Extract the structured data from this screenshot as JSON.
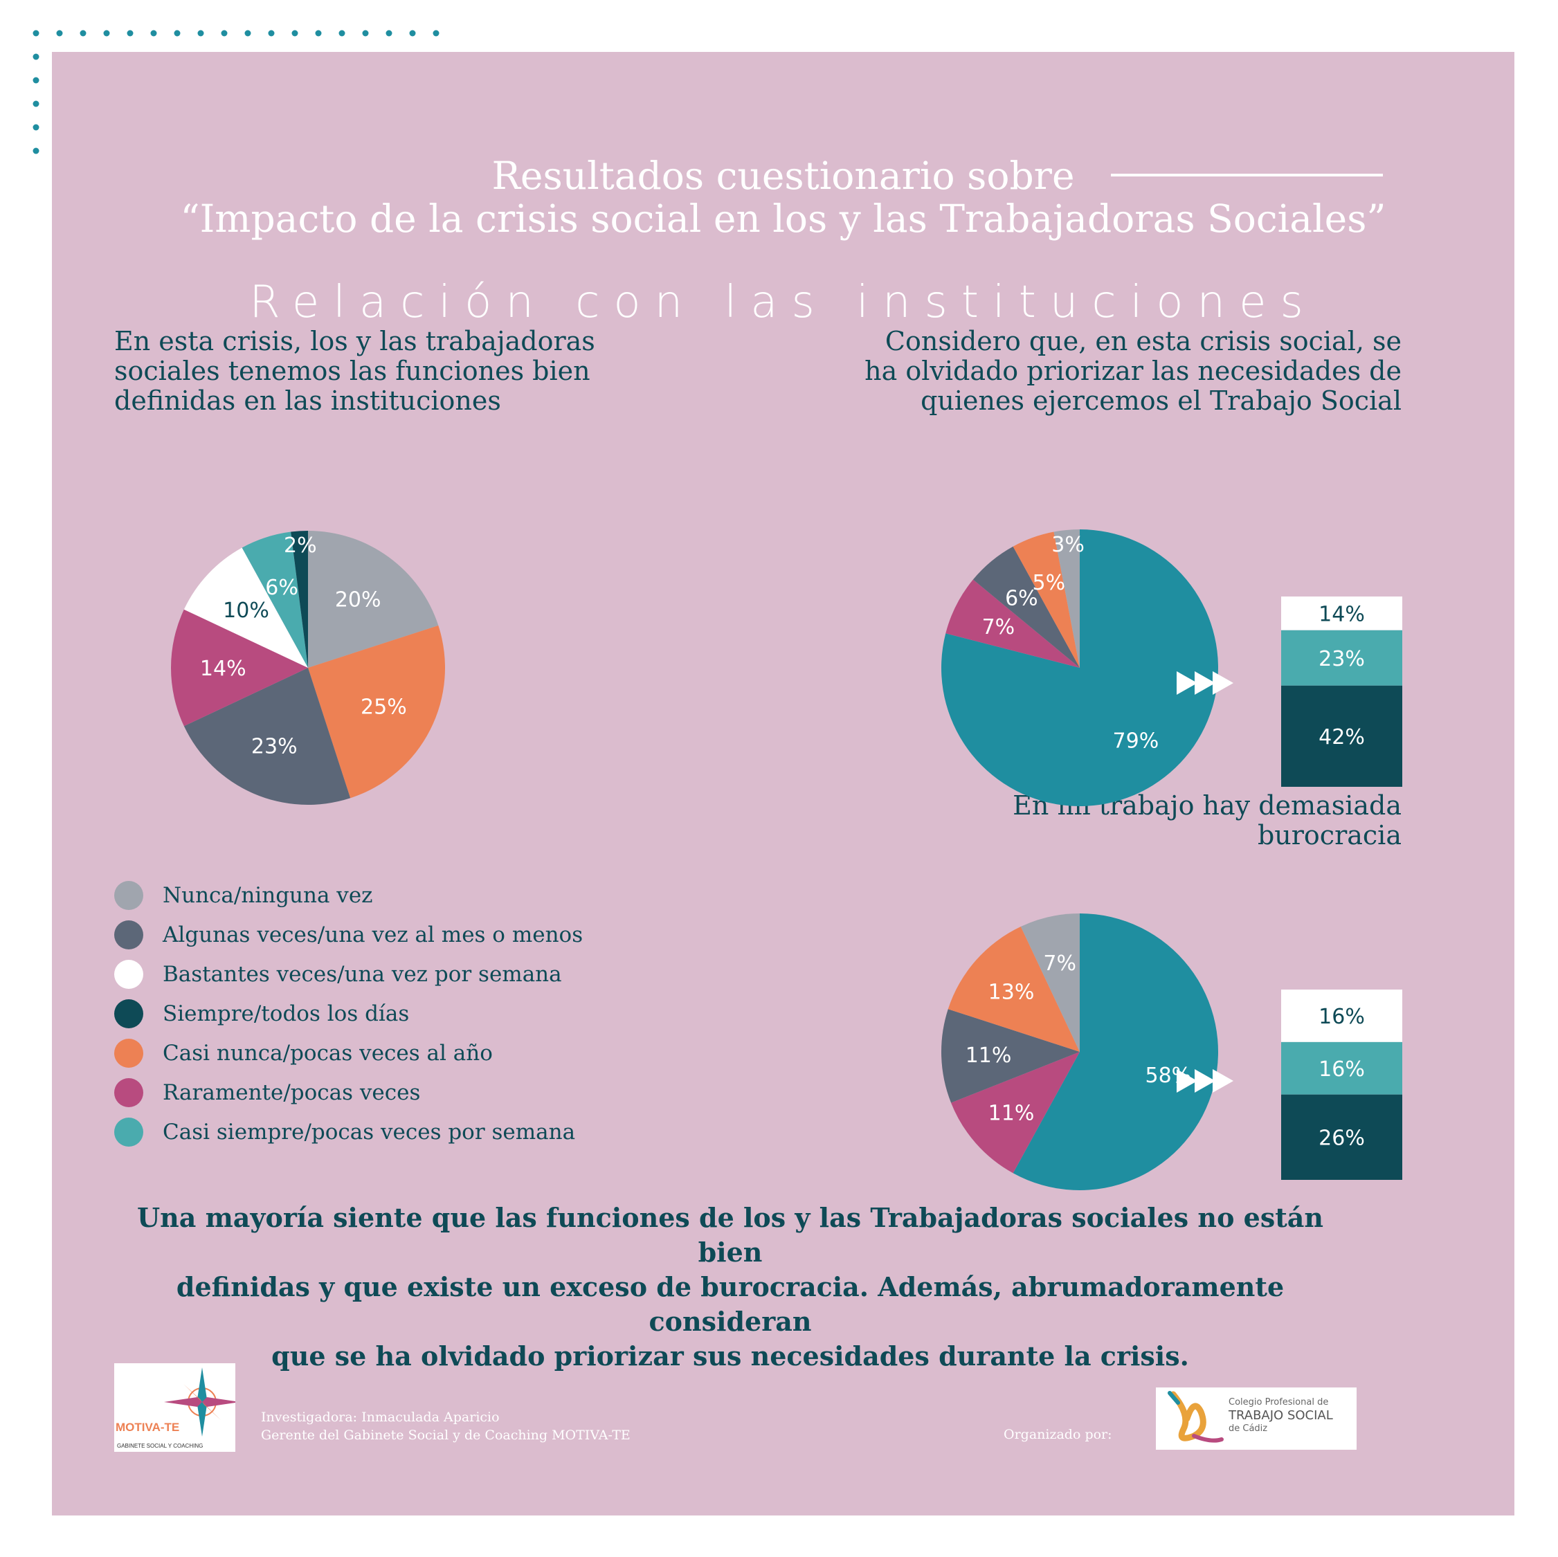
{
  "header": {
    "title_line1": "Resultados cuestionario sobre",
    "title_line2": "“Impacto de la crisis social en los y las Trabajadoras Sociales”",
    "subtitle": "Relación con las instituciones"
  },
  "questions": {
    "q1": [
      "En esta crisis, los y las trabajadoras",
      "sociales tenemos las funciones bien",
      "definidas en las instituciones"
    ],
    "q2": [
      "Considero que, en esta crisis  social, se",
      "ha olvidado priorizar las necesidades de",
      "quienes ejercemos el Trabajo Social"
    ],
    "q3": [
      "En mi trabajo hay demasiada",
      "burocracia"
    ]
  },
  "colors": {
    "nunca": "#a0a5ae",
    "algunas": "#5c6778",
    "bastantes": "#ffffff",
    "siempre": "#0e4a56",
    "casi_nunca": "#ed8154",
    "raramente": "#b84b7f",
    "casi_siempre": "#4aabae",
    "accent_teal": "#1f8ea0",
    "panel_bg": "#dbbcce"
  },
  "legend": [
    {
      "label": "Nunca/ninguna vez",
      "color": "#a0a5ae"
    },
    {
      "label": "Algunas veces/una vez al mes o menos",
      "color": "#5c6778"
    },
    {
      "label": "Bastantes veces/una vez por semana",
      "color": "#ffffff"
    },
    {
      "label": "Siempre/todos los días",
      "color": "#0e4a56"
    },
    {
      "label": "Casi nunca/pocas veces al año",
      "color": "#ed8154"
    },
    {
      "label": "Raramente/pocas veces",
      "color": "#b84b7f"
    },
    {
      "label": "Casi siempre/pocas veces por semana",
      "color": "#4aabae"
    }
  ],
  "chart_data": [
    {
      "type": "pie",
      "title": "En esta crisis, los y las trabajadoras sociales tenemos las funciones bien definidas en las instituciones",
      "slices": [
        {
          "category": "Nunca/ninguna vez",
          "value": 20,
          "label": "20%",
          "color": "#a0a5ae",
          "text": "#ffffff"
        },
        {
          "category": "Casi nunca/pocas veces al año",
          "value": 25,
          "label": "25%",
          "color": "#ed8154",
          "text": "#ffffff"
        },
        {
          "category": "Algunas veces/una vez al mes o menos",
          "value": 23,
          "label": "23%",
          "color": "#5c6778",
          "text": "#ffffff"
        },
        {
          "category": "Raramente/pocas veces",
          "value": 14,
          "label": "14%",
          "color": "#b84b7f",
          "text": "#ffffff"
        },
        {
          "category": "Bastantes veces/una vez por semana",
          "value": 10,
          "label": "10%",
          "color": "#ffffff",
          "text": "#0e4a56"
        },
        {
          "category": "Casi siempre/pocas veces por semana",
          "value": 6,
          "label": "6%",
          "color": "#4aabae",
          "text": "#ffffff"
        },
        {
          "category": "Siempre/todos los días",
          "value": 2,
          "label": "2%",
          "color": "#0e4a56",
          "text": "#ffffff"
        }
      ]
    },
    {
      "type": "pie",
      "title": "Considero que, en esta crisis social, se ha olvidado priorizar las necesidades de quienes ejercemos el Trabajo Social",
      "slices": [
        {
          "category": "Bastantes + Casi siempre + Siempre",
          "value": 79,
          "label": "79%",
          "color": "#1f8ea0",
          "text": "#ffffff"
        },
        {
          "category": "Raramente/pocas veces",
          "value": 7,
          "label": "7%",
          "color": "#b84b7f",
          "text": "#ffffff"
        },
        {
          "category": "Algunas veces/una vez al mes o menos",
          "value": 6,
          "label": "6%",
          "color": "#5c6778",
          "text": "#ffffff"
        },
        {
          "category": "Casi nunca/pocas veces al año",
          "value": 5,
          "label": "5%",
          "color": "#ed8154",
          "text": "#ffffff"
        },
        {
          "category": "Nunca/ninguna vez",
          "value": 3,
          "label": "3%",
          "color": "#a0a5ae",
          "text": "#ffffff"
        }
      ],
      "breakdown": [
        {
          "category": "Bastantes veces/una vez por semana",
          "value": 14,
          "label": "14%",
          "color": "#ffffff",
          "text": "#0e4a56"
        },
        {
          "category": "Casi siempre/pocas veces por semana",
          "value": 23,
          "label": "23%",
          "color": "#4aabae",
          "text": "#ffffff"
        },
        {
          "category": "Siempre/todos los días",
          "value": 42,
          "label": "42%",
          "color": "#0e4a56",
          "text": "#ffffff"
        }
      ]
    },
    {
      "type": "pie",
      "title": "En mi trabajo hay demasiada burocracia",
      "slices": [
        {
          "category": "Bastantes + Casi siempre + Siempre",
          "value": 58,
          "label": "58%",
          "color": "#1f8ea0",
          "text": "#ffffff"
        },
        {
          "category": "Raramente/pocas veces",
          "value": 11,
          "label": "11%",
          "color": "#b84b7f",
          "text": "#ffffff"
        },
        {
          "category": "Algunas veces/una vez al mes o menos",
          "value": 11,
          "label": "11%",
          "color": "#5c6778",
          "text": "#ffffff"
        },
        {
          "category": "Casi nunca/pocas veces al año",
          "value": 13,
          "label": "13%",
          "color": "#ed8154",
          "text": "#ffffff"
        },
        {
          "category": "Nunca/ninguna vez",
          "value": 7,
          "label": "7%",
          "color": "#a0a5ae",
          "text": "#ffffff"
        }
      ],
      "breakdown": [
        {
          "category": "Bastantes veces/una vez por semana",
          "value": 16,
          "label": "16%",
          "color": "#ffffff",
          "text": "#0e4a56"
        },
        {
          "category": "Casi siempre/pocas veces por semana",
          "value": 16,
          "label": "16%",
          "color": "#4aabae",
          "text": "#ffffff"
        },
        {
          "category": "Siempre/todos los días",
          "value": 26,
          "label": "26%",
          "color": "#0e4a56",
          "text": "#ffffff"
        }
      ]
    }
  ],
  "conclusion": [
    "Una mayoría siente que las funciones de los y las Trabajadoras sociales no están bien",
    "definidas y que existe un exceso de burocracia. Además, abrumadoramente consideran",
    "que se ha olvidado priorizar sus necesidades durante la crisis."
  ],
  "footer": {
    "logo_left_name": "MOTIVA-TE",
    "logo_left_tagline": "GABINETE SOCIAL Y COACHING",
    "credit_line1": "Investigadora: Inmaculada Aparicio",
    "credit_line2": "Gerente del Gabinete Social y de Coaching MOTIVA-TE",
    "organizado": "Organizado por:",
    "logo_right_line1": "Colegio Profesional de",
    "logo_right_line2": "TRABAJO SOCIAL",
    "logo_right_line3": "de Cádiz"
  }
}
